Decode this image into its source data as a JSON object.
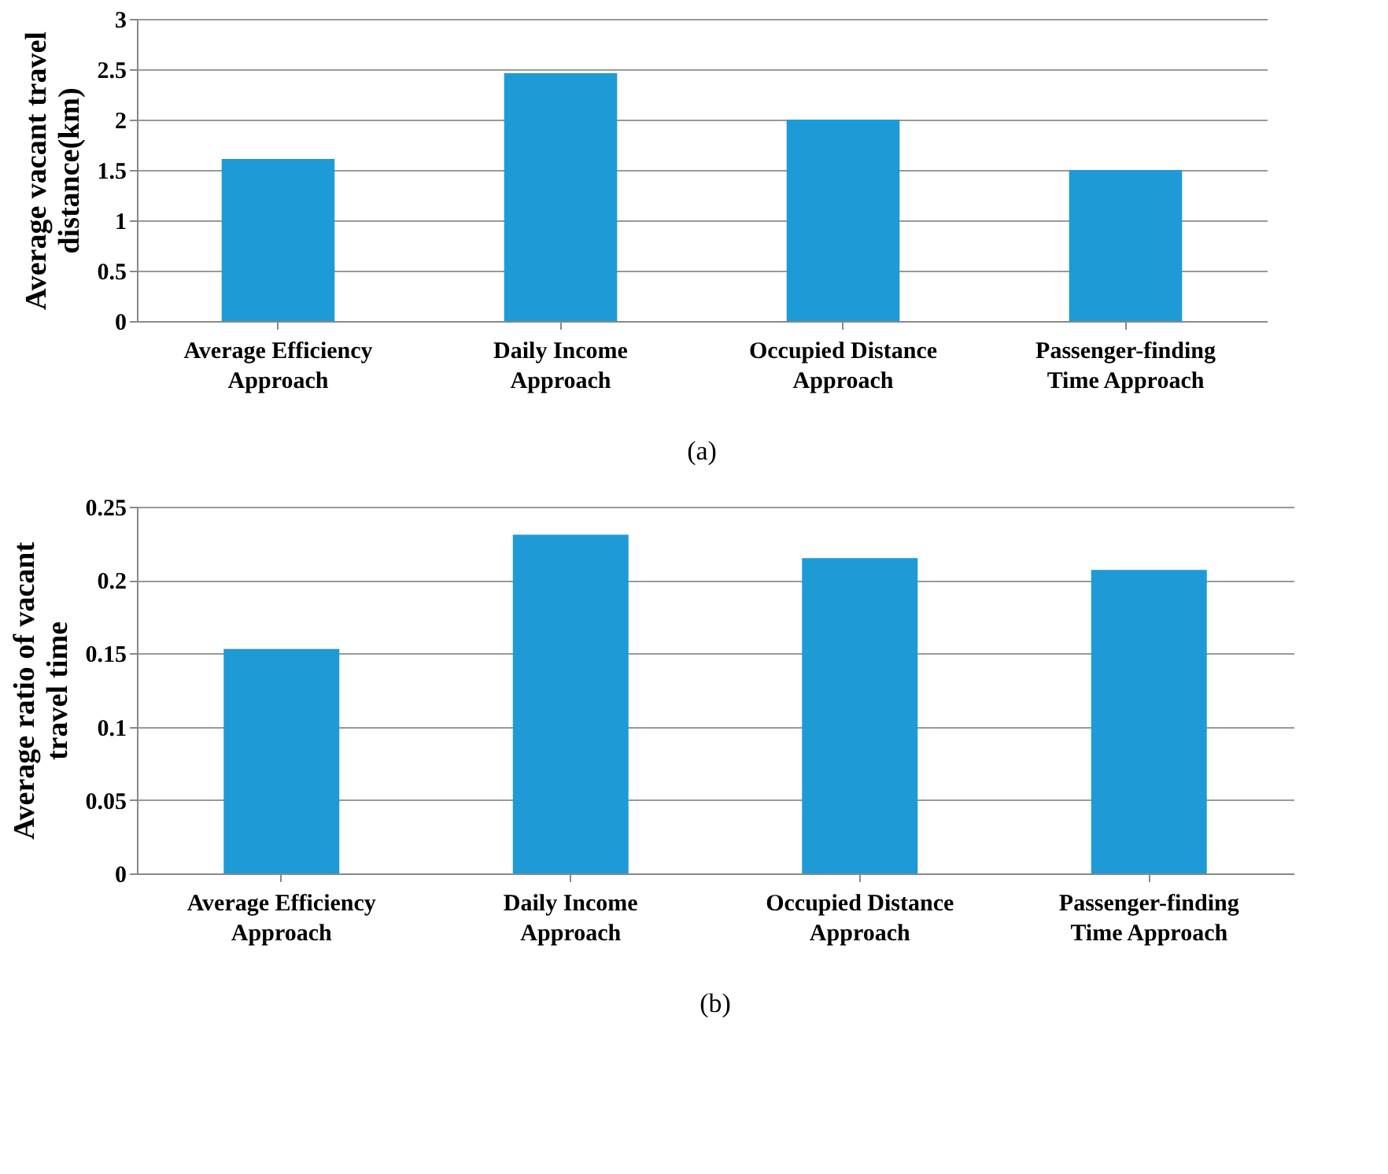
{
  "chart_data": [
    {
      "type": "bar",
      "categories": [
        "Average Efficiency Approach",
        "Daily Income Approach",
        "Occupied Distance Approach",
        "Passenger-finding Time Approach"
      ],
      "values": [
        1.61,
        2.46,
        2.0,
        1.5
      ],
      "color": "#1e9bd7",
      "ylabel": "Average vacant travel distance(km)",
      "ylim": [
        0,
        3
      ],
      "yticks": [
        0,
        0.5,
        1,
        1.5,
        2,
        2.5,
        3
      ],
      "grid": "y",
      "annotations": [
        "(a)"
      ]
    },
    {
      "type": "bar",
      "categories": [
        "Average Efficiency Approach",
        "Daily Income Approach",
        "Occupied Distance Approach",
        "Passenger-finding Time Approach"
      ],
      "values": [
        0.153,
        0.231,
        0.215,
        0.207
      ],
      "color": "#1e9bd7",
      "ylabel": "Average ratio of vacant travel time",
      "ylim": [
        0,
        0.25
      ],
      "yticks": [
        0,
        0.05,
        0.1,
        0.15,
        0.2,
        0.25
      ],
      "grid": "y",
      "annotations": [
        "(b)"
      ]
    }
  ]
}
